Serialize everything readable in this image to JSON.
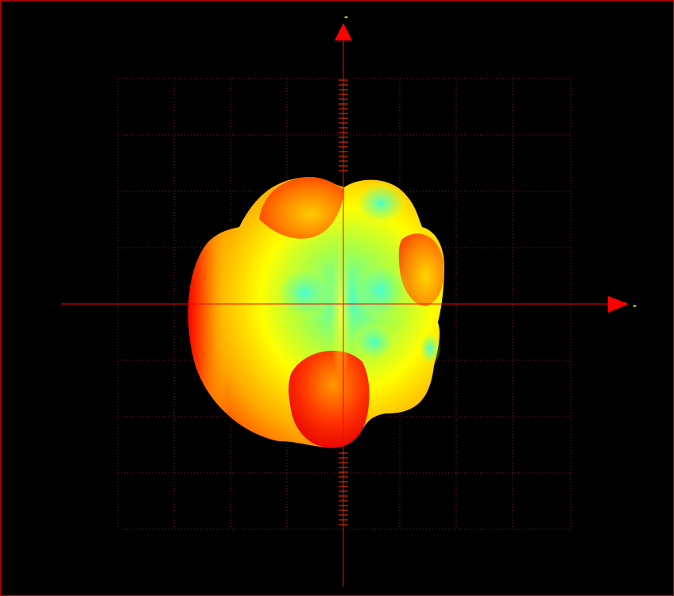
{
  "view": {
    "type": "3d-radiation-pattern-viewer",
    "background_color": "#000000",
    "grid_color": "#8b1a1a",
    "axis_color": "#ff0000",
    "axis_label_color": "#ffff33",
    "grid_visible": true
  },
  "axes": {
    "x_label": "-",
    "y_label": "-"
  },
  "surface": {
    "colormap": [
      "#ff0000",
      "#ff8000",
      "#ffff00",
      "#33ffdd"
    ]
  }
}
